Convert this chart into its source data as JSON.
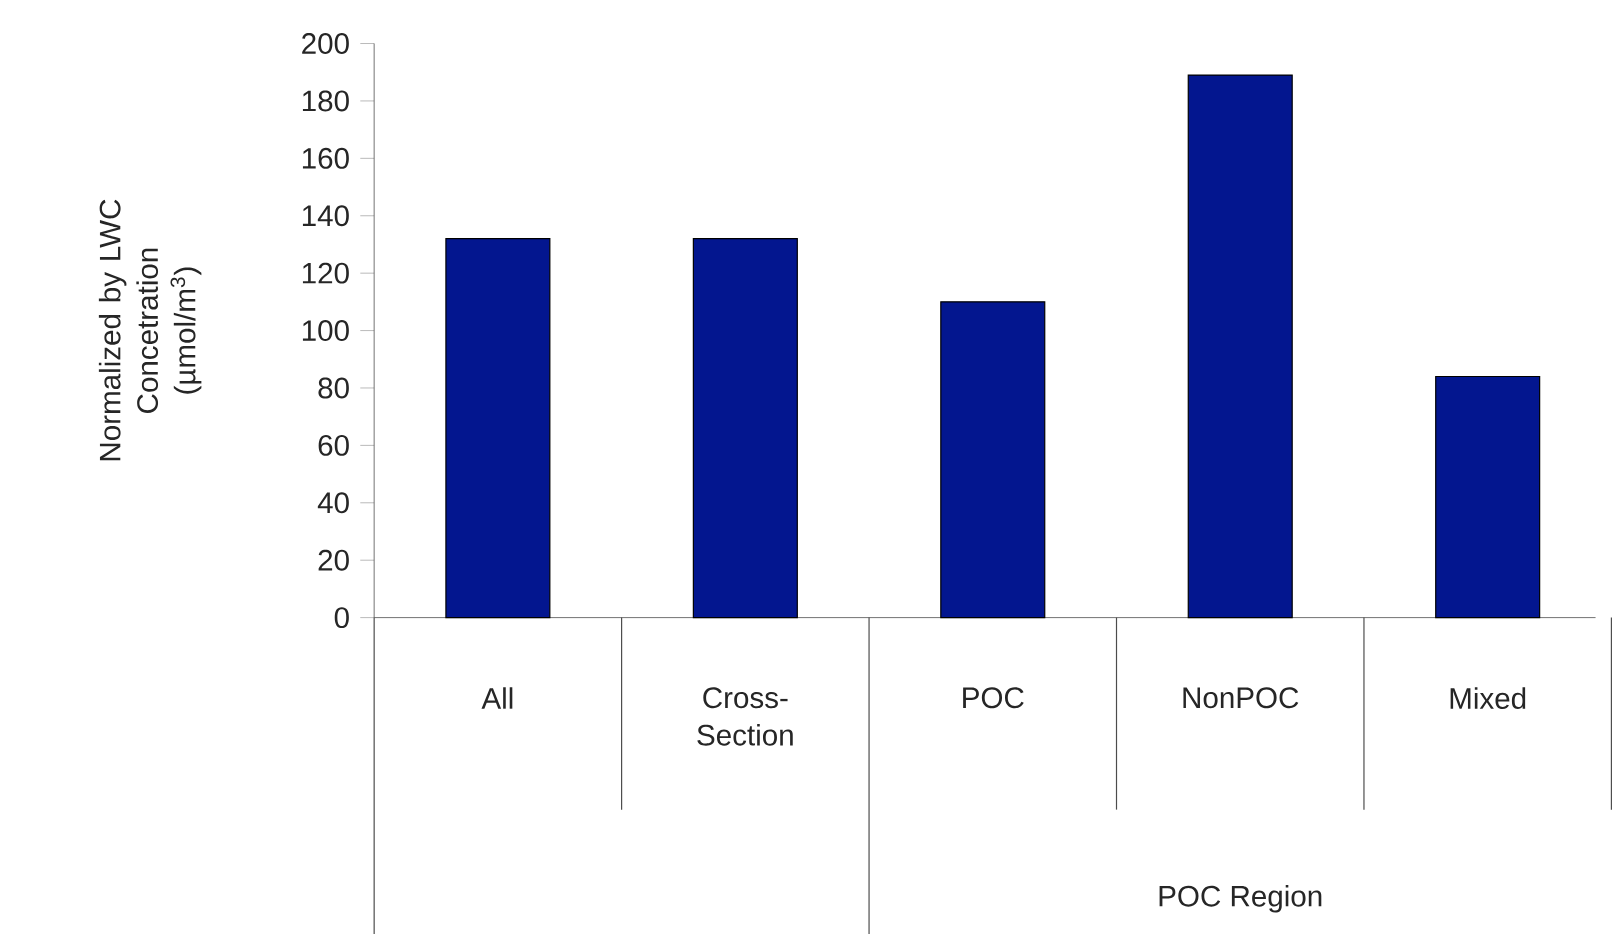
{
  "chart_data": {
    "type": "bar",
    "ylabel": "Normalized by LWC Concetration (µmol/m$^{3}$)",
    "categories": [
      "All",
      "Cross-Section",
      "POC",
      "NonPOC",
      "Mixed"
    ],
    "values": [
      132,
      132,
      110,
      189,
      84
    ],
    "color": "#03168f",
    "ylim": [
      0,
      200
    ],
    "yticks": [
      0,
      20,
      40,
      60,
      80,
      100,
      120,
      140,
      160,
      180,
      200
    ],
    "annotations": [
      "POC Region"
    ]
  }
}
